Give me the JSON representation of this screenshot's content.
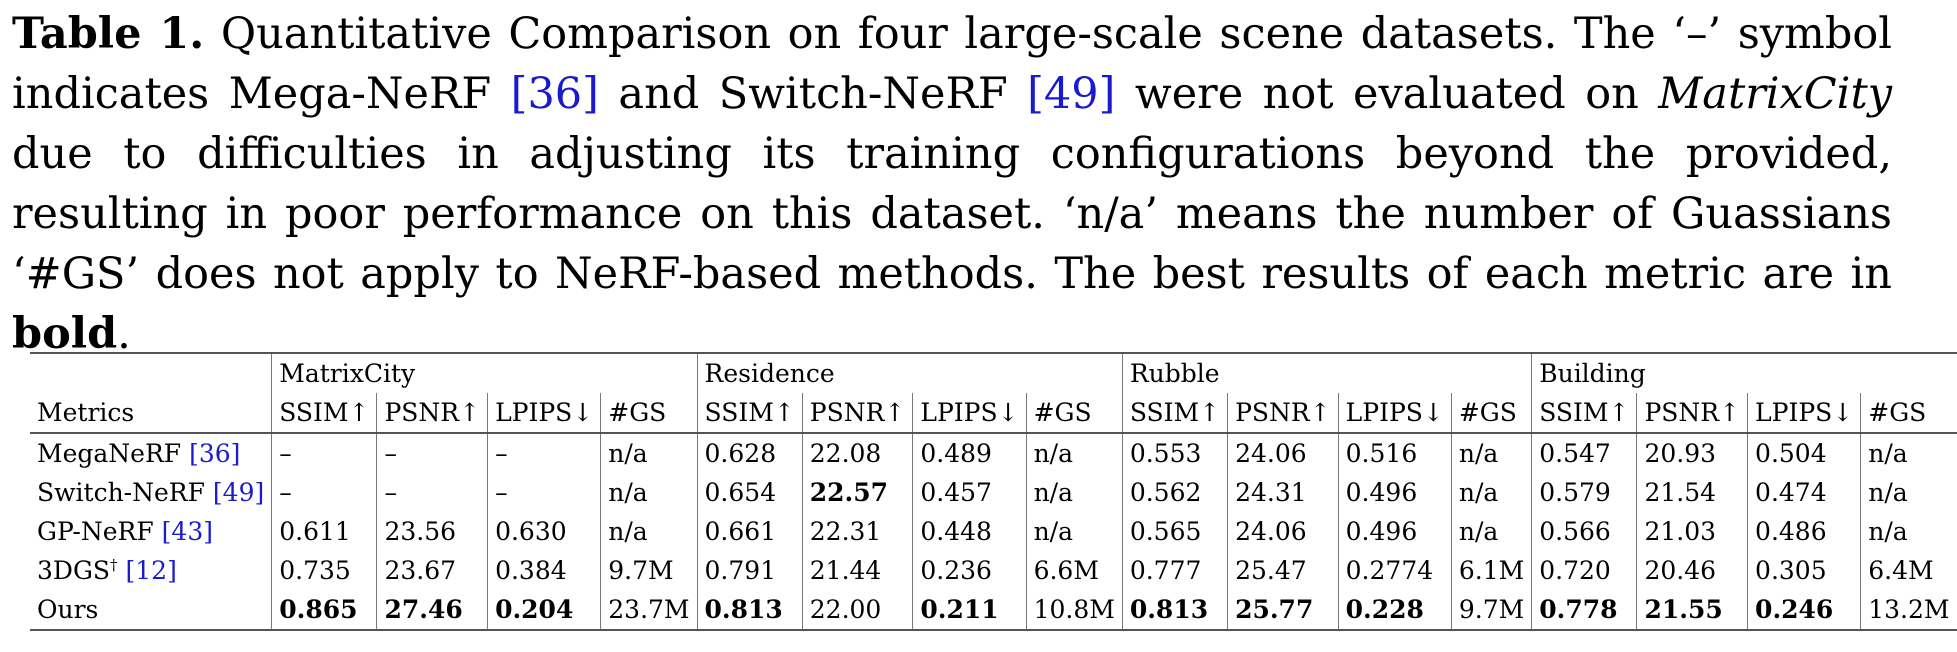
{
  "caption": {
    "label": "Table 1.",
    "part1": " Quantitative Comparison on four large-scale scene datasets. The ‘–’ symbol indicates Mega-NeRF ",
    "ref1": "[36]",
    "part2": " and Switch-NeRF ",
    "ref2": "[49]",
    "part3": " were not evaluated on ",
    "dataset_it": "MatrixCity",
    "part4": " due to difficulties in adjusting its training configurations beyond the provided, resulting in poor performance on this dataset. ‘n/a’ means the number of Guassians ‘#GS’ does not apply to NeRF-based methods. The best results of each metric are in ",
    "bold_word": "bold",
    "part5": "."
  },
  "table": {
    "groups": [
      "MatrixCity",
      "Residence",
      "Rubble",
      "Building"
    ],
    "metrics_label": "Metrics",
    "columns": [
      "SSIM↑",
      "PSNR↑",
      "LPIPS↓",
      "#GS"
    ],
    "rows": [
      {
        "method": "MegaNeRF ",
        "ref": "[36]",
        "sup": "",
        "cells": [
          "–",
          "–",
          "–",
          "n/a",
          "0.628",
          "22.08",
          "0.489",
          "n/a",
          "0.553",
          "24.06",
          "0.516",
          "n/a",
          "0.547",
          "20.93",
          "0.504",
          "n/a"
        ]
      },
      {
        "method": "Switch-NeRF ",
        "ref": "[49]",
        "sup": "",
        "cells": [
          "–",
          "–",
          "–",
          "n/a",
          "0.654",
          "22.57",
          "0.457",
          "n/a",
          "0.562",
          "24.31",
          "0.496",
          "n/a",
          "0.579",
          "21.54",
          "0.474",
          "n/a"
        ]
      },
      {
        "method": "GP-NeRF ",
        "ref": "[43]",
        "sup": "",
        "cells": [
          "0.611",
          "23.56",
          "0.630",
          "n/a",
          "0.661",
          "22.31",
          "0.448",
          "n/a",
          "0.565",
          "24.06",
          "0.496",
          "n/a",
          "0.566",
          "21.03",
          "0.486",
          "n/a"
        ]
      },
      {
        "method": "3DGS",
        "ref": "[12]",
        "sup": "†",
        "cells": [
          "0.735",
          "23.67",
          "0.384",
          "9.7M",
          "0.791",
          "21.44",
          "0.236",
          "6.6M",
          "0.777",
          "25.47",
          "0.2774",
          "6.1M",
          "0.720",
          "20.46",
          "0.305",
          "6.4M"
        ]
      },
      {
        "method": "Ours",
        "ref": "",
        "sup": "",
        "cells": [
          "0.865",
          "27.46",
          "0.204",
          "23.7M",
          "0.813",
          "22.00",
          "0.211",
          "10.8M",
          "0.813",
          "25.77",
          "0.228",
          "9.7M",
          "0.778",
          "21.55",
          "0.246",
          "13.2M"
        ]
      }
    ],
    "bold_cells": [
      [
        1,
        5
      ],
      [
        4,
        0
      ],
      [
        4,
        1
      ],
      [
        4,
        2
      ],
      [
        4,
        4
      ],
      [
        4,
        6
      ],
      [
        4,
        8
      ],
      [
        4,
        9
      ],
      [
        4,
        10
      ],
      [
        4,
        12
      ],
      [
        4,
        13
      ],
      [
        4,
        14
      ]
    ]
  }
}
